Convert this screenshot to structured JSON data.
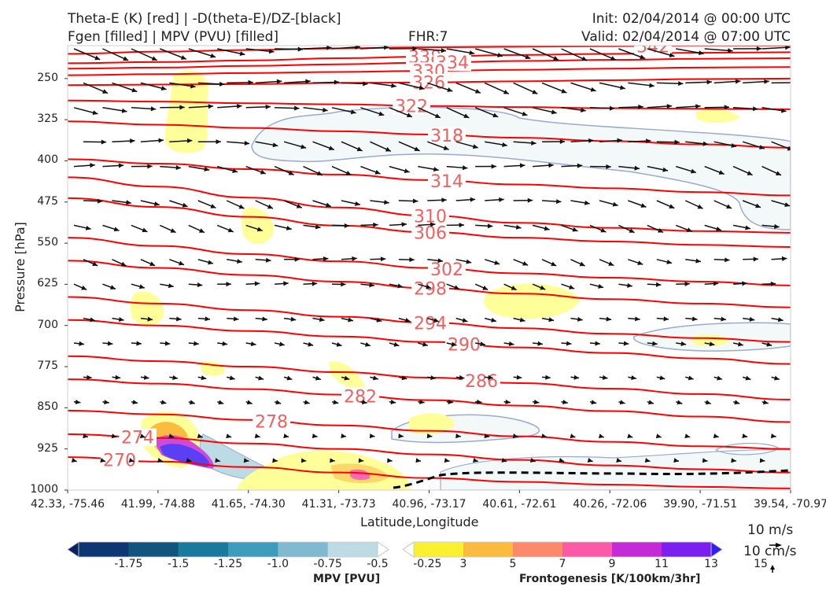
{
  "header": {
    "title_left_1": "Theta-E (K) [red] | -D(theta-E)/DZ-[black]",
    "title_left_2": "Fgen [filled] | MPV (PVU) [filled]",
    "fhr": "FHR:7",
    "init": "Init: 02/04/2014 @ 00:00 UTC",
    "valid": "Valid: 02/04/2014 @ 07:00 UTC"
  },
  "chart_data": {
    "type": "cross-section",
    "ylabel": "Pressure [hPa]",
    "xlabel": "Latitude,Longitude",
    "y_ticks": [
      "250",
      "325",
      "400",
      "475",
      "550",
      "625",
      "700",
      "775",
      "850",
      "925",
      "1000"
    ],
    "ylim": [
      1000,
      190
    ],
    "x_ticks": [
      "42.33, -75.46",
      "41.99, -74.88",
      "41.65, -74.30",
      "41.31, -73.73",
      "40.96, -73.17",
      "40.61, -72.61",
      "40.26, -72.06",
      "39.90, -71.51",
      "39.54, -70.97"
    ],
    "theta_e_contours": [
      {
        "value": 342,
        "label": "342",
        "p": [
          205,
          201,
          198,
          195,
          193,
          192,
          191,
          190,
          190
        ]
      },
      {
        "value": 338,
        "label": "338",
        "p": [
          222,
          220,
          217,
          213,
          210,
          207,
          205,
          203,
          202
        ]
      },
      {
        "value": 334,
        "label": "334",
        "p": [
          232,
          230,
          227,
          224,
          221,
          218,
          216,
          214,
          213
        ]
      },
      {
        "value": 330,
        "label": "330",
        "p": [
          244,
          242,
          240,
          238,
          236,
          234,
          232,
          230,
          229
        ]
      },
      {
        "value": 326,
        "label": "326",
        "p": [
          262,
          261,
          260,
          258,
          257,
          255,
          253,
          251,
          250
        ]
      },
      {
        "value": 322,
        "label": "322",
        "p": [
          290,
          292,
          295,
          297,
          300,
          302,
          304,
          305,
          306
        ]
      },
      {
        "value": 318,
        "label": "318",
        "p": [
          328,
          334,
          340,
          346,
          352,
          358,
          364,
          370,
          376
        ]
      },
      {
        "value": 314,
        "label": "314",
        "p": [
          397,
          405,
          415,
          425,
          435,
          443,
          450,
          457,
          463
        ]
      },
      {
        "value": 310,
        "label": "310",
        "p": [
          430,
          447,
          467,
          485,
          500,
          513,
          522,
          528,
          531
        ]
      },
      {
        "value": 306,
        "label": "306",
        "p": [
          468,
          484,
          502,
          518,
          530,
          540,
          547,
          553,
          557
        ]
      },
      {
        "value": 302,
        "label": "302",
        "p": [
          540,
          555,
          570,
          583,
          595,
          605,
          613,
          620,
          627
        ]
      },
      {
        "value": 298,
        "label": "298",
        "p": [
          582,
          595,
          608,
          620,
          632,
          642,
          652,
          660,
          667
        ]
      },
      {
        "value": 294,
        "label": "294",
        "p": [
          648,
          660,
          672,
          684,
          695,
          705,
          715,
          723,
          730
        ]
      },
      {
        "value": 290,
        "label": "290",
        "p": [
          690,
          700,
          710,
          720,
          730,
          740,
          750,
          760,
          770
        ]
      },
      {
        "value": 286,
        "label": "286",
        "p": [
          756,
          765,
          775,
          785,
          795,
          805,
          815,
          825,
          835
        ]
      },
      {
        "value": 282,
        "label": "282",
        "p": [
          798,
          806,
          816,
          826,
          836,
          846,
          856,
          866,
          876
        ]
      },
      {
        "value": 278,
        "label": "278",
        "p": [
          855,
          862,
          872,
          882,
          892,
          902,
          912,
          920,
          925
        ]
      },
      {
        "value": 274,
        "label": "274",
        "p": [
          898,
          905,
          915,
          925,
          935,
          945,
          955,
          962,
          968
        ]
      },
      {
        "value": 270,
        "label": "270",
        "p": [
          940,
          948,
          958,
          968,
          978,
          985,
          990,
          994,
          997
        ]
      }
    ],
    "vector_scale": {
      "u": "10 m/s",
      "w": "10 cm/s"
    }
  },
  "colorbars": {
    "mpv": {
      "label": "MPV [PVU]",
      "ticks": [
        "-1.75",
        "-1.5",
        "-1.25",
        "-1.0",
        "-0.75",
        "-0.5",
        "-0.25"
      ],
      "colors": [
        "#0c1f60",
        "#0d3772",
        "#11557f",
        "#1a7a9e",
        "#3d9bbc",
        "#7fbad0",
        "#bcdbe4",
        "#ffffff"
      ]
    },
    "fgen": {
      "label": "Frontogenesis [K/100km/3hr]",
      "ticks": [
        "3",
        "5",
        "7",
        "9",
        "11",
        "13",
        "15"
      ],
      "colors": [
        "#ffffff",
        "#f9f12f",
        "#fbbb3e",
        "#fb8a6c",
        "#fb5aa6",
        "#c42ad6",
        "#7a1ff0",
        "#2f1ef8"
      ]
    }
  },
  "colors": {
    "theta_e": "#ff0000",
    "theta_e_label": "#f06060",
    "vectors": "#111111",
    "mpv_outline": "#9aaad0"
  }
}
